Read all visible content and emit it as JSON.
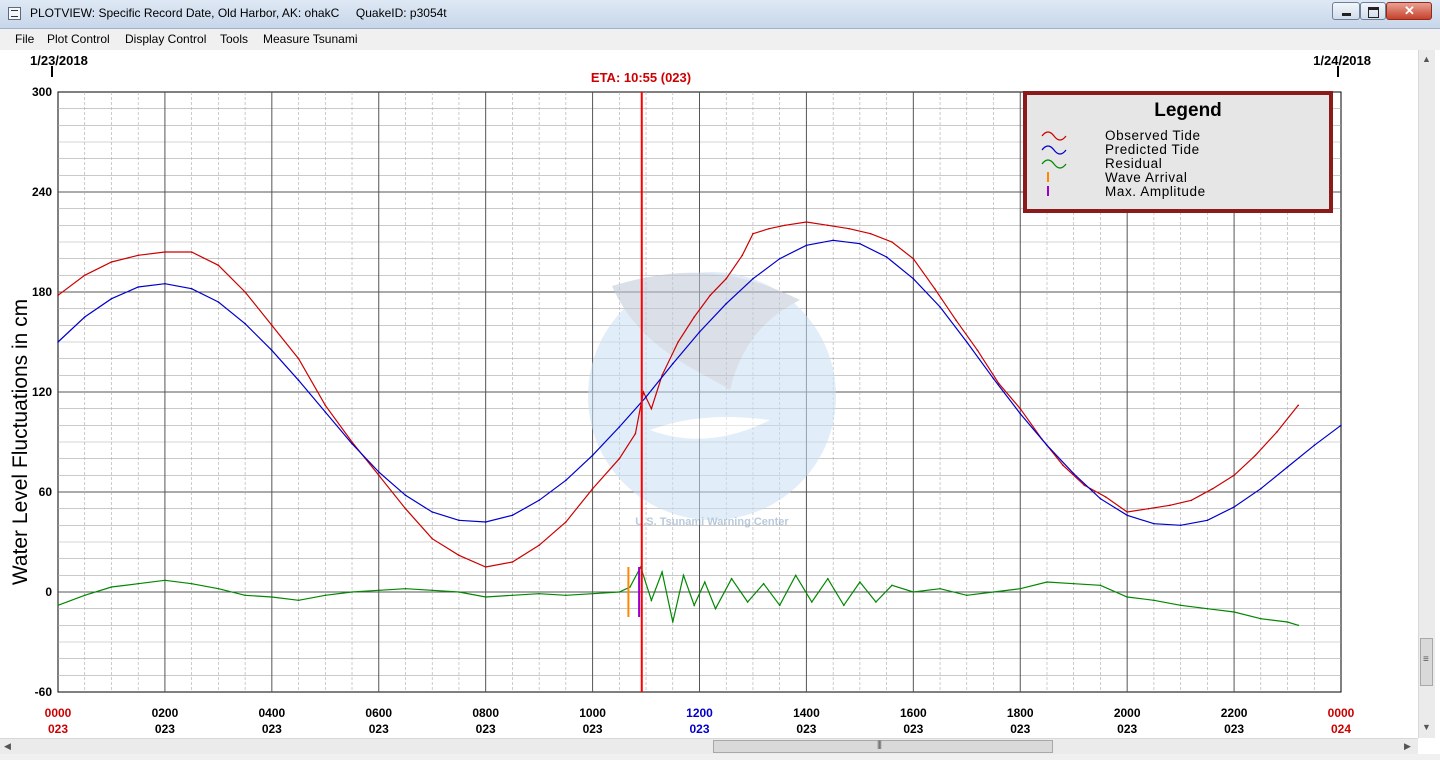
{
  "window": {
    "title": "PLOTVIEW: Specific Record Date, Old Harbor, AK: ohakC     QuakeID: p3054t"
  },
  "menu": [
    "File",
    "Plot Control",
    "Display Control",
    "Tools",
    "Measure Tsunami"
  ],
  "plot": {
    "start_date": "1/23/2018",
    "end_date": "1/24/2018",
    "eta_label": "ETA: 10:55 (023)",
    "watermark_text": "U.S. Tsunami Warning Center",
    "colors": {
      "observed": "#cc0000",
      "predicted": "#0000cc",
      "residual": "#008800",
      "eta": "#ff0000",
      "wave_arrival": "#ff8800",
      "max_amplitude": "#9900cc",
      "legend_border": "#8b1a1a"
    }
  },
  "legend": {
    "title": "Legend",
    "items": [
      {
        "label": "Observed Tide",
        "symbol": "wave",
        "color": "#cc0000"
      },
      {
        "label": "Predicted Tide",
        "symbol": "wave",
        "color": "#0000cc"
      },
      {
        "label": "Residual",
        "symbol": "wave",
        "color": "#008800"
      },
      {
        "label": "Wave Arrival",
        "symbol": "tick",
        "color": "#ff8800"
      },
      {
        "label": "Max. Amplitude",
        "symbol": "tick",
        "color": "#9900cc"
      }
    ]
  },
  "chart_data": {
    "type": "line",
    "ylabel": "Water Level Fluctuations in cm",
    "ylim": [
      -60,
      300
    ],
    "yticks": [
      "300",
      "240",
      "180",
      "120",
      "60",
      "0",
      "-60"
    ],
    "xlim": [
      0,
      24
    ],
    "grid": true,
    "legend_position": "top-right",
    "x_ticks": [
      {
        "time": "0000",
        "day": "023",
        "color": "#cc0000"
      },
      {
        "time": "0200",
        "day": "023",
        "color": "#000000"
      },
      {
        "time": "0400",
        "day": "023",
        "color": "#000000"
      },
      {
        "time": "0600",
        "day": "023",
        "color": "#000000"
      },
      {
        "time": "0800",
        "day": "023",
        "color": "#000000"
      },
      {
        "time": "1000",
        "day": "023",
        "color": "#000000"
      },
      {
        "time": "1200",
        "day": "023",
        "color": "#0000cc"
      },
      {
        "time": "1400",
        "day": "023",
        "color": "#000000"
      },
      {
        "time": "1600",
        "day": "023",
        "color": "#000000"
      },
      {
        "time": "1800",
        "day": "023",
        "color": "#000000"
      },
      {
        "time": "2000",
        "day": "023",
        "color": "#000000"
      },
      {
        "time": "2200",
        "day": "023",
        "color": "#000000"
      },
      {
        "time": "0000",
        "day": "024",
        "color": "#cc0000"
      }
    ],
    "eta_hour": 10.92,
    "wave_arrival_hour": 10.67,
    "max_amplitude_hour": 10.87,
    "series": [
      {
        "name": "Observed Tide",
        "color": "#cc0000",
        "x": [
          0,
          0.5,
          1,
          1.5,
          2,
          2.5,
          3,
          3.5,
          4,
          4.5,
          5,
          5.5,
          6,
          6.5,
          7,
          7.5,
          8,
          8.5,
          9,
          9.5,
          10,
          10.5,
          10.8,
          10.95,
          11.1,
          11.3,
          11.6,
          11.9,
          12.2,
          12.5,
          12.8,
          13,
          13.3,
          13.6,
          14,
          14.4,
          14.8,
          15.2,
          15.6,
          16,
          16.4,
          16.8,
          17.2,
          17.6,
          18,
          18.4,
          18.8,
          19.2,
          19.6,
          20,
          20.4,
          20.8,
          21.2,
          21.6,
          22,
          22.4,
          22.8,
          23.2
        ],
        "y": [
          178,
          190,
          198,
          202,
          204,
          204,
          196,
          180,
          160,
          140,
          112,
          90,
          70,
          50,
          32,
          22,
          15,
          18,
          28,
          42,
          62,
          80,
          95,
          120,
          110,
          130,
          150,
          165,
          178,
          188,
          202,
          215,
          218,
          220,
          222,
          220,
          218,
          215,
          210,
          200,
          182,
          163,
          145,
          125,
          110,
          92,
          76,
          64,
          57,
          48,
          50,
          52,
          55,
          62,
          70,
          82,
          96,
          112
        ]
      },
      {
        "name": "Predicted Tide",
        "color": "#0000cc",
        "x": [
          0,
          0.5,
          1,
          1.5,
          2,
          2.5,
          3,
          3.5,
          4,
          4.5,
          5,
          5.5,
          6,
          6.5,
          7,
          7.5,
          8,
          8.5,
          9,
          9.5,
          10,
          10.5,
          11,
          11.5,
          12,
          12.5,
          13,
          13.5,
          14,
          14.5,
          15,
          15.5,
          16,
          16.5,
          17,
          17.5,
          18,
          18.5,
          19,
          19.5,
          20,
          20.5,
          21,
          21.5,
          22,
          22.5,
          23,
          23.5,
          24
        ],
        "y": [
          150,
          165,
          176,
          183,
          185,
          182,
          174,
          161,
          145,
          127,
          108,
          89,
          72,
          58,
          48,
          43,
          42,
          46,
          55,
          67,
          82,
          99,
          117,
          137,
          156,
          173,
          188,
          200,
          208,
          211,
          209,
          201,
          188,
          171,
          150,
          128,
          107,
          88,
          71,
          56,
          46,
          41,
          40,
          43,
          51,
          62,
          75,
          88,
          100
        ]
      },
      {
        "name": "Residual",
        "color": "#008800",
        "x": [
          0,
          0.5,
          1,
          1.5,
          2,
          2.5,
          3,
          3.5,
          4,
          4.5,
          5,
          5.5,
          6,
          6.5,
          7,
          7.5,
          8,
          8.5,
          9,
          9.5,
          10,
          10.5,
          10.7,
          10.9,
          11.1,
          11.3,
          11.5,
          11.7,
          11.9,
          12.1,
          12.3,
          12.6,
          12.9,
          13.2,
          13.5,
          13.8,
          14.1,
          14.4,
          14.7,
          15,
          15.3,
          15.6,
          16,
          16.5,
          17,
          17.5,
          18,
          18.5,
          19,
          19.5,
          20,
          20.5,
          21,
          21.5,
          22,
          22.5,
          23,
          23.2
        ],
        "y": [
          -8,
          -2,
          3,
          5,
          7,
          5,
          2,
          -2,
          -3,
          -5,
          -2,
          0,
          1,
          2,
          1,
          0,
          -3,
          -2,
          -1,
          -2,
          -1,
          0,
          3,
          15,
          -5,
          12,
          -18,
          10,
          -8,
          6,
          -10,
          8,
          -6,
          5,
          -8,
          10,
          -6,
          8,
          -8,
          6,
          -6,
          4,
          0,
          2,
          -2,
          0,
          2,
          6,
          5,
          4,
          -3,
          -5,
          -8,
          -10,
          -12,
          -16,
          -18,
          -20
        ]
      }
    ]
  }
}
